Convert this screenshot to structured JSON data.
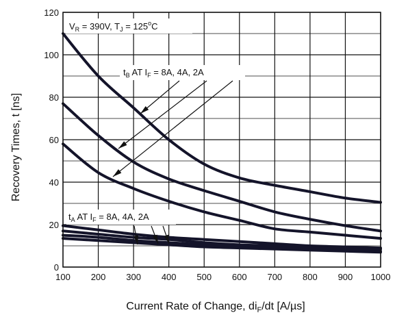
{
  "chart_data": {
    "type": "line",
    "title": "",
    "xlabel": {
      "main": "Current Rate of Change, di",
      "sub": "F",
      "unit": "/dt [A/µs]"
    },
    "ylabel": "Recovery Times, t [ns]",
    "xlim": [
      100,
      1000
    ],
    "ylim": [
      0,
      120
    ],
    "x_ticks": [
      100,
      200,
      300,
      400,
      500,
      600,
      700,
      800,
      900,
      1000
    ],
    "y_ticks": [
      0,
      20,
      40,
      60,
      80,
      100,
      120
    ],
    "grid": true,
    "x": [
      100,
      200,
      300,
      400,
      500,
      600,
      700,
      800,
      900,
      1000
    ],
    "series": [
      {
        "values": [
          110,
          90,
          75,
          60,
          48.5,
          42,
          38.5,
          35.5,
          32.5,
          30.5
        ]
      },
      {
        "values": [
          77,
          62,
          49.5,
          41.5,
          36,
          31,
          26,
          22.5,
          19.5,
          17
        ]
      },
      {
        "values": [
          58,
          44.5,
          37,
          31,
          26,
          22,
          18,
          16.5,
          15,
          13.5
        ]
      },
      {
        "values": [
          19.5,
          17.5,
          15.5,
          14,
          13,
          12,
          11,
          10,
          9.5,
          9
        ]
      },
      {
        "values": [
          17,
          15.5,
          14,
          13,
          11.5,
          10.5,
          10,
          9.5,
          9,
          8.5
        ]
      },
      {
        "values": [
          15,
          14,
          12.5,
          11.5,
          10.5,
          9.5,
          9,
          8.5,
          8,
          7.5
        ]
      },
      {
        "values": [
          13.5,
          12.5,
          11.5,
          10.5,
          9.5,
          9,
          8.5,
          8,
          7.5,
          7
        ]
      }
    ],
    "annotations": {
      "conditions": {
        "v": "V",
        "v_sub": "R",
        "v_val": " = 390V, T",
        "t_sub": "J",
        "t_val": " = 125",
        "deg": "o",
        "unit": "C"
      },
      "tb": {
        "t": "t",
        "t_sub": "B",
        "at": " AT I",
        "i_sub": "F",
        "rest": " = 8A, 4A, 2A"
      },
      "ta": {
        "t": "t",
        "t_sub": "A",
        "at": " AT I",
        "i_sub": "F",
        "rest": " = 8A, 4A, 2A"
      }
    }
  }
}
